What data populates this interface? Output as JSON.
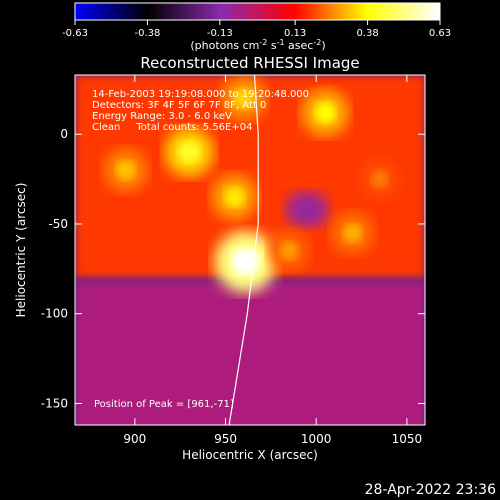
{
  "chart_data": {
    "type": "heatmap",
    "title": "Reconstructed RHESSI Image",
    "xlabel": "Heliocentric X (arcsec)",
    "ylabel": "Heliocentric Y (arcsec)",
    "xlim": [
      867,
      1060
    ],
    "ylim": [
      -162,
      33
    ],
    "x_ticks": [
      900,
      950,
      1000,
      1050
    ],
    "y_ticks": [
      0,
      -50,
      -100,
      -150
    ],
    "colorbar": {
      "min": -0.63,
      "max": 0.63,
      "ticks": [
        "-0.63",
        "-0.38",
        "-0.13",
        "0.13",
        "0.38",
        "0.63"
      ],
      "tick_values": [
        -0.63,
        -0.38,
        -0.13,
        0.13,
        0.38,
        0.63
      ],
      "unit_parts": [
        "(photons cm",
        "-2",
        " s",
        "-1",
        " asec",
        "-2",
        ")"
      ],
      "colormap": [
        "#0000ff",
        "#000000",
        "#8a2ab0",
        "#ff0000",
        "#ffff00",
        "#ffffff"
      ]
    },
    "annotations": [
      "14-Feb-2003 19:19:08.000 to 19:20:48.000",
      "Detectors: 3F 4F 5F 6F 7F 8F, Att 0",
      "Energy Range: 3.0 - 6.0 keV",
      "Clean     Total counts: 5.56E+04"
    ],
    "peak_label": "Position of Peak = [961,-71]",
    "peak": [
      961,
      -71
    ],
    "limb_curve": [
      [
        966,
        33
      ],
      [
        968,
        0
      ],
      [
        968,
        -50
      ],
      [
        962,
        -100
      ],
      [
        952,
        -162
      ]
    ],
    "emission_blobs": [
      {
        "x": 961,
        "y": -71,
        "value": 0.63
      },
      {
        "x": 930,
        "y": -10,
        "value": 0.42
      },
      {
        "x": 955,
        "y": -35,
        "value": 0.36
      },
      {
        "x": 1005,
        "y": 12,
        "value": 0.38
      },
      {
        "x": 960,
        "y": 20,
        "value": 0.34
      },
      {
        "x": 1020,
        "y": -55,
        "value": 0.3
      },
      {
        "x": 895,
        "y": -20,
        "value": 0.32
      },
      {
        "x": 1035,
        "y": -25,
        "value": 0.25
      },
      {
        "x": 985,
        "y": -65,
        "value": 0.28
      }
    ],
    "quiet_region": {
      "y_max": -80,
      "value": -0.05
    },
    "dark_hole": {
      "x": 995,
      "y": -42,
      "value": -0.1
    }
  },
  "footer": {
    "timestamp": "28-Apr-2022 23:36"
  }
}
